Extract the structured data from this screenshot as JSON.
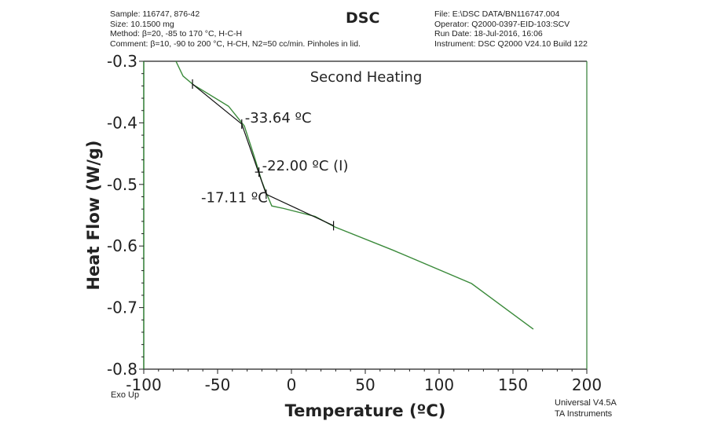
{
  "header": {
    "title": "DSC",
    "left": [
      "Sample: 116747, 876-42",
      "Size: 10.1500 mg",
      "Method: β=20, -85 to 170 °C, H-C-H",
      "Comment: β=10, -90 to 200 °C, H-CH, N2=50 cc/min. Pinholes in lid."
    ],
    "right": [
      "File: E:\\DSC DATA/BN116747.004",
      "Operator: Q2000-0397-EID-103:SCV",
      "Run Date: 18-Jul-2016, 16:06",
      "Instrument: DSC Q2000 V24.10 Build 122"
    ]
  },
  "footer": {
    "exo": "Exo Up",
    "software": [
      "Universal V4.5A",
      "TA Instruments"
    ]
  },
  "colors": {
    "curve": "#3a8a3a",
    "tangent": "#111111",
    "axis_left": "#2e7d32"
  },
  "chart_data": {
    "type": "line",
    "title": "Second Heating",
    "xlabel": "Temperature (ºC)",
    "ylabel": "Heat Flow (W/g)",
    "xlim": [
      -100,
      200
    ],
    "ylim": [
      -0.8,
      -0.3
    ],
    "xticks": [
      -100,
      -50,
      0,
      50,
      100,
      150,
      200
    ],
    "yticks": [
      -0.3,
      -0.4,
      -0.5,
      -0.6,
      -0.7,
      -0.8
    ],
    "grid": false,
    "series": [
      {
        "name": "Heat Flow",
        "x": [
          -78.2,
          -73.4,
          -66.5,
          -42.6,
          -31.9,
          -25,
          -20.2,
          -17,
          -13.3,
          -5.3,
          16,
          29.3,
          69,
          122,
          163.8
        ],
        "y": [
          -0.3,
          -0.324,
          -0.338,
          -0.373,
          -0.405,
          -0.456,
          -0.494,
          -0.514,
          -0.535,
          -0.539,
          -0.552,
          -0.569,
          -0.607,
          -0.661,
          -0.735
        ]
      }
    ],
    "tangents": [
      {
        "x": [
          -67,
          -33.64
        ],
        "y": [
          -0.337,
          -0.402
        ]
      },
      {
        "x": [
          -33.64,
          -17.11
        ],
        "y": [
          -0.402,
          -0.516
        ]
      },
      {
        "x": [
          -17.11,
          28.5
        ],
        "y": [
          -0.516,
          -0.567
        ]
      }
    ],
    "annotations": [
      {
        "text": "-33.64 ºC",
        "x": -33.64,
        "y": -0.402,
        "side": "right"
      },
      {
        "text": "-22.00 ºC (I)",
        "x": -22.0,
        "y": -0.48,
        "side": "right"
      },
      {
        "text": "-17.11 ºC",
        "x": -17.11,
        "y": -0.516,
        "side": "left"
      }
    ],
    "markers": [
      {
        "x": -67,
        "y": -0.337
      },
      {
        "x": -33.64,
        "y": -0.402
      },
      {
        "x": -22.0,
        "y": -0.48
      },
      {
        "x": -17.11,
        "y": -0.516
      },
      {
        "x": 28.5,
        "y": -0.567
      }
    ]
  }
}
